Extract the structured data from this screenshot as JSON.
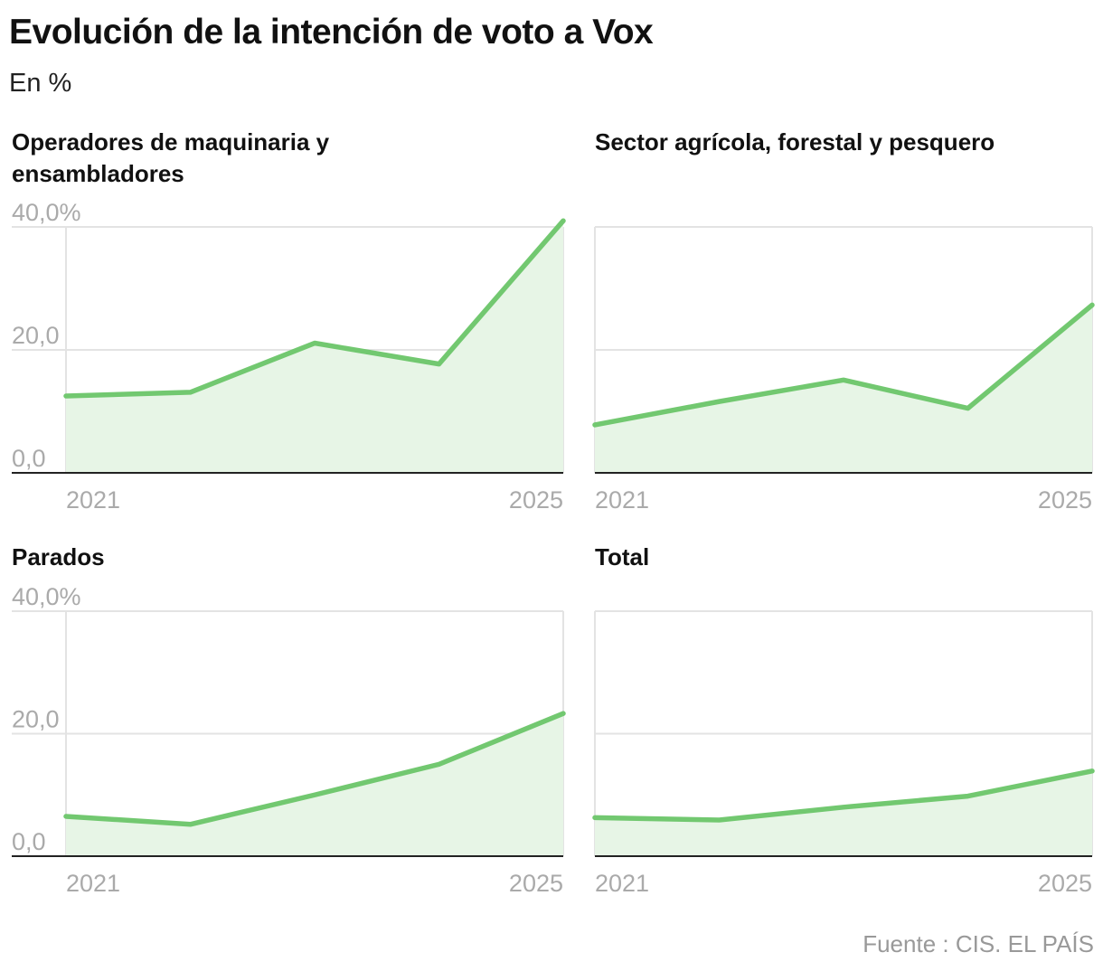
{
  "title": "Evolución de la intención de voto a Vox",
  "subtitle": "En %",
  "source": "Fuente : CIS. EL PAÍS",
  "colors": {
    "line": "#72c870",
    "area": "#e7f5e6",
    "grid": "#e3e3e3",
    "axis": "#222222",
    "tick": "#aaaaaa"
  },
  "chart_data": [
    {
      "type": "area",
      "title_lines": [
        "Operadores de maquinaria y",
        "ensambladores"
      ],
      "x": [
        2021,
        2022,
        2023,
        2024,
        2025
      ],
      "values": [
        12.5,
        13.1,
        21.1,
        17.7,
        41.0
      ],
      "ylim": [
        0,
        40
      ],
      "y_ticks": [
        {
          "value": 40,
          "label": "40,0%"
        },
        {
          "value": 20,
          "label": "20,0"
        },
        {
          "value": 0,
          "label": "0,0"
        }
      ],
      "x_tick_labels": [
        "2021",
        "2025"
      ]
    },
    {
      "type": "area",
      "title_lines": [
        "Sector agrícola, forestal y pesquero"
      ],
      "x": [
        2021,
        2022,
        2023,
        2024,
        2025
      ],
      "values": [
        7.8,
        11.6,
        15.1,
        10.5,
        27.3
      ],
      "ylim": [
        0,
        40
      ],
      "y_ticks": [],
      "x_tick_labels": [
        "2021",
        "2025"
      ]
    },
    {
      "type": "area",
      "title_lines": [
        "Parados"
      ],
      "x": [
        2021,
        2022,
        2023,
        2024,
        2025
      ],
      "values": [
        6.5,
        5.2,
        10.0,
        15.0,
        23.3
      ],
      "ylim": [
        0,
        40
      ],
      "y_ticks": [
        {
          "value": 40,
          "label": "40,0%"
        },
        {
          "value": 20,
          "label": "20,0"
        },
        {
          "value": 0,
          "label": "0,0"
        }
      ],
      "x_tick_labels": [
        "2021",
        "2025"
      ]
    },
    {
      "type": "area",
      "title_lines": [
        "Total"
      ],
      "x": [
        2021,
        2022,
        2023,
        2024,
        2025
      ],
      "values": [
        6.3,
        5.9,
        8.0,
        9.8,
        13.9
      ],
      "ylim": [
        0,
        40
      ],
      "y_ticks": [],
      "x_tick_labels": [
        "2021",
        "2025"
      ]
    }
  ]
}
